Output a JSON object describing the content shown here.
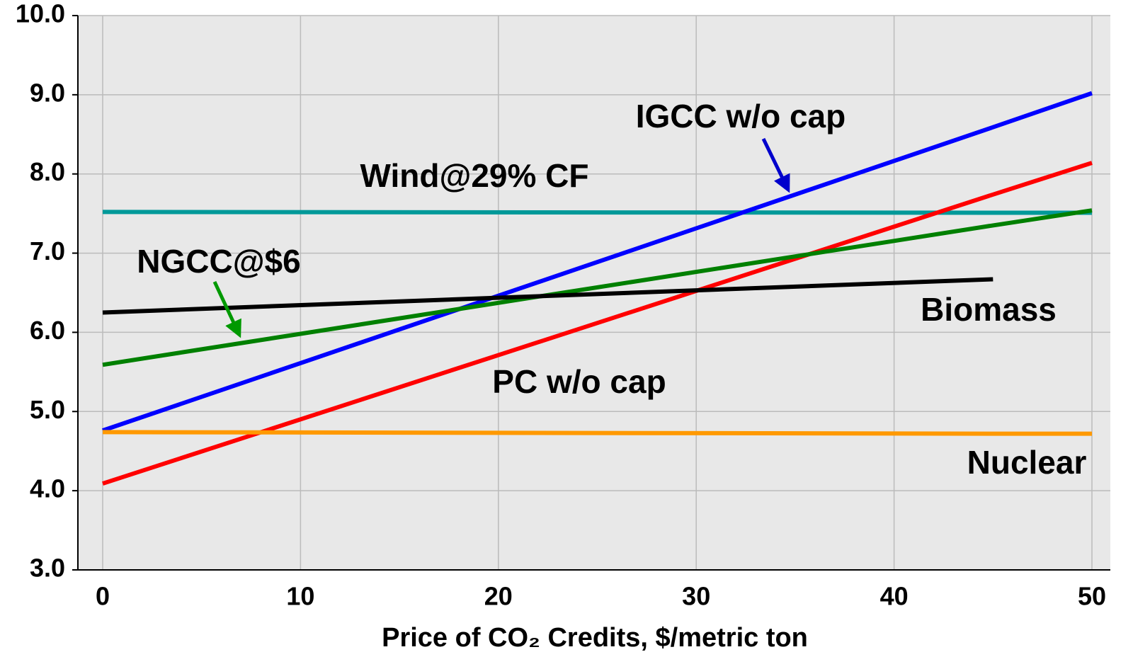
{
  "chart_data": {
    "type": "line",
    "xlabel": "Price of CO₂ Credits, $/metric ton",
    "x": [
      0,
      45,
      50
    ],
    "xlim": [
      0,
      50
    ],
    "xticks": [
      0,
      10,
      20,
      30,
      40,
      50
    ],
    "ylim": [
      3,
      10
    ],
    "yticks": [
      {
        "value": 3,
        "label": "3.0"
      },
      {
        "value": 4,
        "label": "4.0"
      },
      {
        "value": 5,
        "label": "5.0"
      },
      {
        "value": 6,
        "label": "6.0"
      },
      {
        "value": 7,
        "label": "7.0"
      },
      {
        "value": 8,
        "label": "8.0"
      },
      {
        "value": 9,
        "label": "9.0"
      },
      {
        "value": 10,
        "label": "10.0"
      }
    ],
    "grid": true,
    "series": [
      {
        "name": "Wind@29% CF",
        "color": "#009999",
        "values": [
          7.52,
          7.51,
          7.51
        ]
      },
      {
        "name": "IGCC w/o cap",
        "color": "#0000ff",
        "values": [
          4.76,
          8.59,
          9.02
        ]
      },
      {
        "name": "PC w/o cap",
        "color": "#ff0000",
        "values": [
          4.09,
          7.74,
          8.14
        ]
      },
      {
        "name": "NGCC@$6",
        "color": "#008000",
        "values": [
          5.59,
          7.35,
          7.54
        ]
      },
      {
        "name": "Biomass",
        "color": "#000000",
        "values": [
          6.25,
          6.67,
          null
        ]
      },
      {
        "name": "Nuclear",
        "color": "#ff9900",
        "values": [
          4.74,
          4.72,
          4.72
        ]
      }
    ]
  }
}
